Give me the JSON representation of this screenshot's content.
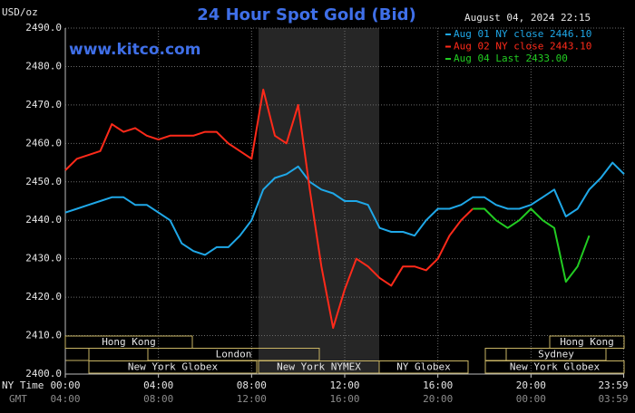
{
  "chart_data": {
    "type": "line",
    "title": "24 Hour Spot Gold (Bid)",
    "timestamp": "August 04, 2024 22:15",
    "y_label": "USD/oz",
    "watermark": "www.kitco.com",
    "x_label_ny": "NY Time",
    "x_label_gmt": "GMT",
    "x": [
      0,
      0.5,
      1,
      1.5,
      2,
      2.5,
      3,
      3.5,
      4,
      4.5,
      5,
      5.5,
      6,
      6.5,
      7,
      7.5,
      8,
      8.5,
      9,
      9.5,
      10,
      10.5,
      11,
      11.5,
      12,
      12.5,
      13,
      13.5,
      14,
      14.5,
      15,
      15.5,
      16,
      16.5,
      17,
      17.5,
      18,
      18.5,
      19,
      19.5,
      20,
      20.5,
      21,
      21.5,
      22,
      22.5,
      23,
      23.5,
      24
    ],
    "xlim": [
      0,
      24
    ],
    "xticks": [
      {
        "value": 0,
        "label": "00:00"
      },
      {
        "value": 4,
        "label": "04:00"
      },
      {
        "value": 8,
        "label": "08:00"
      },
      {
        "value": 12,
        "label": "12:00"
      },
      {
        "value": 16,
        "label": "16:00"
      },
      {
        "value": 20,
        "label": "20:00"
      },
      {
        "value": 23.983,
        "label": "23:59"
      }
    ],
    "gmt_labels": [
      "04:00",
      "08:00",
      "12:00",
      "16:00",
      "20:00",
      "00:00",
      "03:59"
    ],
    "ylim": [
      2400,
      2490
    ],
    "yticks": [
      {
        "value": 2400,
        "label": "2400.0"
      },
      {
        "value": 2410,
        "label": "2410.0"
      },
      {
        "value": 2420,
        "label": "2420.0"
      },
      {
        "value": 2430,
        "label": "2430.0"
      },
      {
        "value": 2440,
        "label": "2440.0"
      },
      {
        "value": 2450,
        "label": "2450.0"
      },
      {
        "value": 2460,
        "label": "2460.0"
      },
      {
        "value": 2470,
        "label": "2470.0"
      },
      {
        "value": 2480,
        "label": "2480.0"
      },
      {
        "value": 2490,
        "label": "2490.0"
      }
    ],
    "grid": true,
    "legend": "top-right",
    "series": [
      {
        "name": "Aug 01 NY close 2446.10",
        "color": "#1fa8e8",
        "values": [
          2442,
          2443,
          2444,
          2445,
          2446,
          2446,
          2444,
          2444,
          2442,
          2440,
          2434,
          2432,
          2431,
          2433,
          2433,
          2436,
          2440,
          2448,
          2451,
          2452,
          2454,
          2450,
          2448,
          2447,
          2445,
          2445,
          2444,
          2438,
          2437,
          2437,
          2436,
          2440,
          2443,
          2443,
          2444,
          2446,
          2446,
          2444,
          2443,
          2443,
          2444,
          2446,
          2448,
          2441,
          2443,
          2448,
          2451,
          2455,
          2452
        ]
      },
      {
        "name": "Aug 02 NY close 2443.10",
        "color": "#ff2a1a",
        "values": [
          2453,
          2456,
          2457,
          2458,
          2465,
          2463,
          2464,
          2462,
          2461,
          2462,
          2462,
          2462,
          2463,
          2463,
          2460,
          2458,
          2456,
          2474,
          2462,
          2460,
          2470,
          2448,
          2428,
          2412,
          2422,
          2430,
          2428,
          2425,
          2423,
          2428,
          2428,
          2427,
          2430,
          2436,
          2440,
          2443,
          null,
          null,
          null,
          null,
          null,
          null,
          null,
          null,
          null,
          null,
          null,
          null,
          null
        ]
      },
      {
        "name": "Aug 04 Last 2433.00",
        "color": "#22cc22",
        "values": [
          null,
          null,
          null,
          null,
          null,
          null,
          null,
          null,
          null,
          null,
          null,
          null,
          null,
          null,
          null,
          null,
          null,
          null,
          null,
          null,
          null,
          null,
          null,
          null,
          null,
          null,
          null,
          null,
          null,
          null,
          null,
          null,
          null,
          null,
          null,
          2443,
          2443,
          2440,
          2438,
          2440,
          2443,
          2440,
          2438,
          2424,
          2428,
          2436,
          null,
          null,
          null
        ]
      }
    ],
    "sessions": [
      "Hong Kong",
      "London",
      "New York Globex",
      "New York NYMEX",
      "NY Globex",
      "Sydney",
      "Hong Kong",
      "New York Globex"
    ]
  }
}
